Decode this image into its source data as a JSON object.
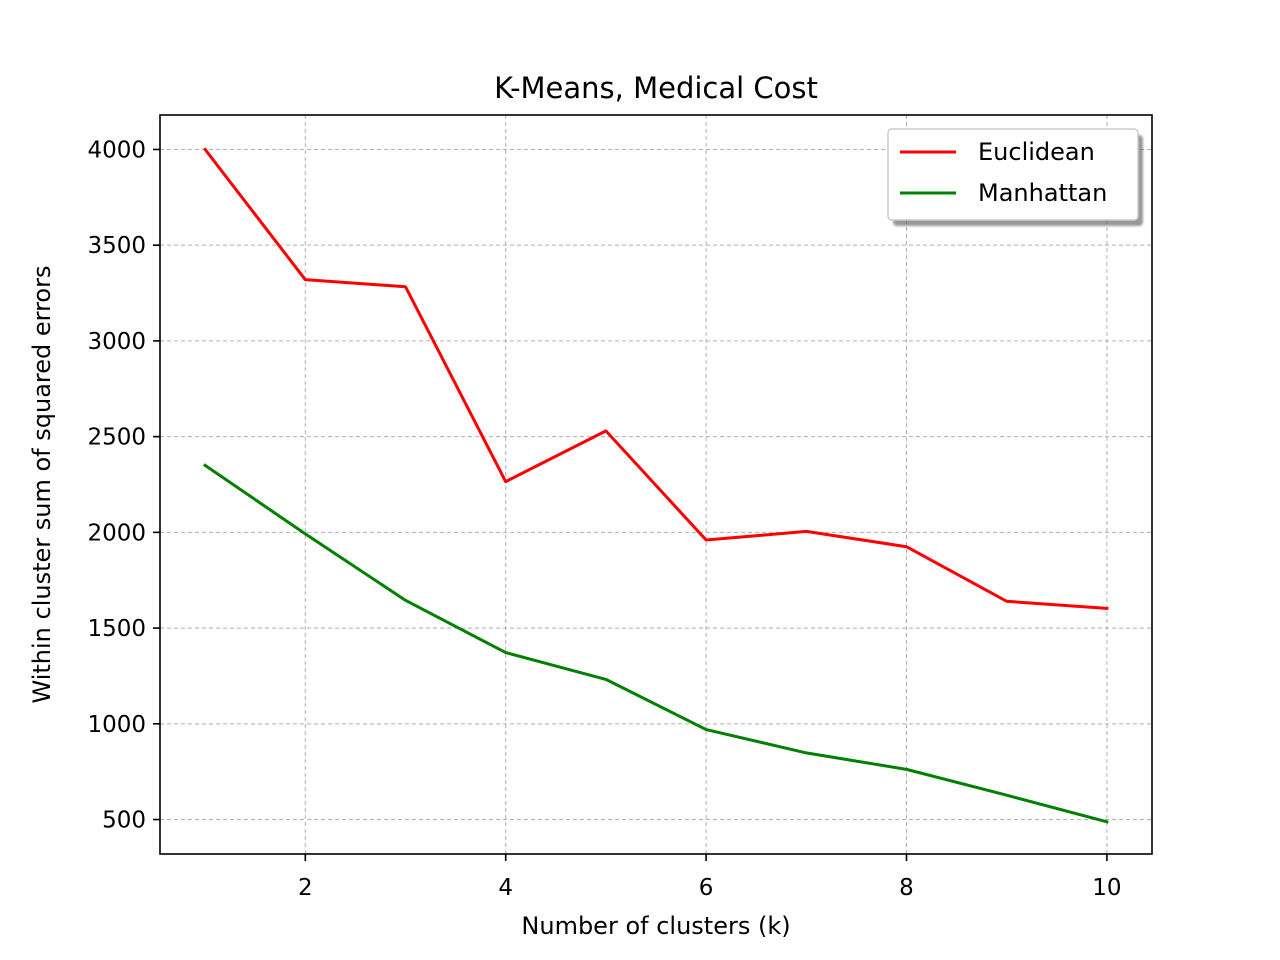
{
  "chart_data": {
    "type": "line",
    "title": "K-Means, Medical Cost",
    "xlabel": "Number of clusters (k)",
    "ylabel": "Within cluster sum of squared errors",
    "x": [
      1,
      2,
      3,
      4,
      5,
      6,
      7,
      8,
      9,
      10
    ],
    "xlim": [
      0.55,
      10.45
    ],
    "ylim": [
      320,
      4180
    ],
    "xticks": [
      2,
      4,
      6,
      8,
      10
    ],
    "yticks": [
      500,
      1000,
      1500,
      2000,
      2500,
      3000,
      3500,
      4000
    ],
    "grid": true,
    "legend_position": "upper right",
    "series": [
      {
        "name": "Euclidean",
        "color": "#ff0000",
        "values": [
          4000,
          3320,
          3283,
          2265,
          2530,
          1960,
          2005,
          1925,
          1640,
          1603
        ]
      },
      {
        "name": "Manhattan",
        "color": "#008000",
        "values": [
          2350,
          1992,
          1645,
          1372,
          1232,
          970,
          848,
          762,
          627,
          488
        ]
      }
    ]
  }
}
